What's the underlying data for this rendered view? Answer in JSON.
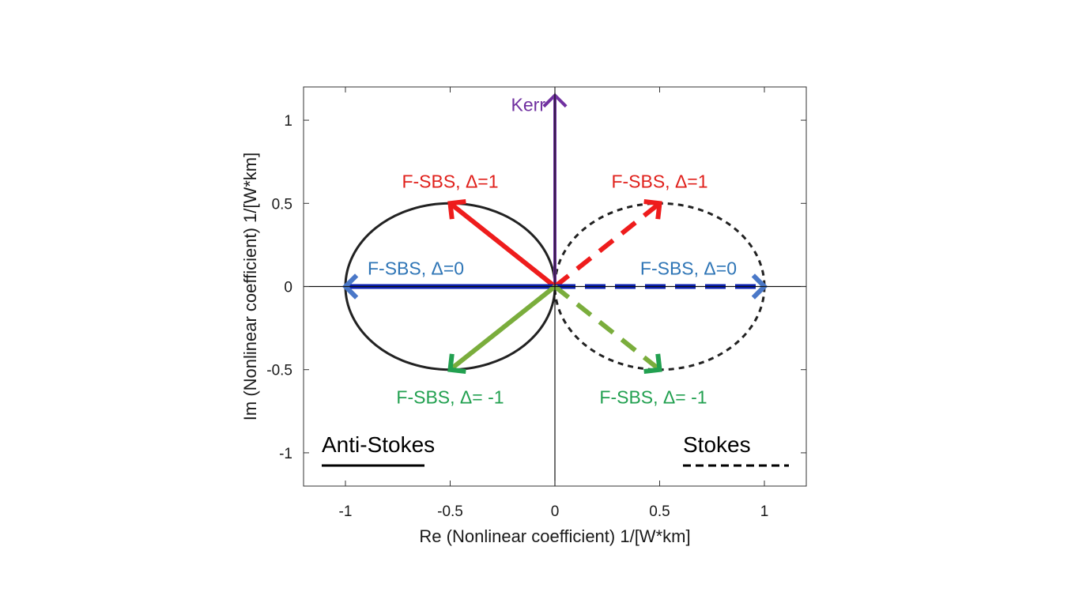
{
  "chart_data": {
    "type": "line",
    "title": "",
    "xlabel": "Re (Nonlinear coefficient) 1/[W*km]",
    "ylabel": "Im (Nonlinear coefficient) 1/[W*km]",
    "xlim": [
      -1.2,
      1.2
    ],
    "ylim": [
      -1.2,
      1.2
    ],
    "x_ticks": [
      -1,
      -0.5,
      0,
      0.5,
      1
    ],
    "x_tick_labels": [
      "-1",
      "-0.5",
      "0",
      "0.5",
      "1"
    ],
    "y_ticks": [
      -1,
      -0.5,
      0,
      0.5,
      1
    ],
    "y_tick_labels": [
      "-1",
      "-0.5",
      "0",
      "0.5",
      "1"
    ],
    "grid": false,
    "circles": [
      {
        "label": "Anti-Stokes",
        "center": [
          -0.5,
          0
        ],
        "radius_x": 0.5,
        "radius_y": 0.5,
        "style": "solid",
        "color": "#222222"
      },
      {
        "label": "Stokes",
        "center": [
          0.5,
          0
        ],
        "radius_x": 0.5,
        "radius_y": 0.5,
        "style": "dashed",
        "color": "#222222"
      }
    ],
    "vectors": [
      {
        "label": "Kerr",
        "from": [
          0,
          0
        ],
        "to": [
          0,
          1.15
        ],
        "style": "solid",
        "color": "#7030a0",
        "label_color": "#7030a0"
      },
      {
        "label": "F-SBS, Δ=1",
        "from": [
          0,
          0
        ],
        "to": [
          -0.5,
          0.5
        ],
        "style": "solid",
        "color": "#ee1c1c",
        "label_color": "#e0201b"
      },
      {
        "label": "F-SBS, Δ=0",
        "from": [
          0,
          0
        ],
        "to": [
          -1,
          0
        ],
        "style": "solid",
        "color": "#0a1fb0",
        "head_color": "#4a78c8",
        "label_color": "#2e75b6"
      },
      {
        "label": "F-SBS, Δ= -1",
        "from": [
          0,
          0
        ],
        "to": [
          -0.5,
          -0.5
        ],
        "style": "solid",
        "color": "#7aad3c",
        "head_color": "#22a050",
        "label_color": "#22a050"
      },
      {
        "label": "F-SBS, Δ=1",
        "from": [
          0,
          0
        ],
        "to": [
          0.5,
          0.5
        ],
        "style": "dashed",
        "color": "#ee1c1c",
        "label_color": "#e0201b"
      },
      {
        "label": "F-SBS, Δ=0",
        "from": [
          0,
          0
        ],
        "to": [
          1,
          0
        ],
        "style": "dashed",
        "color": "#0a1fb0",
        "head_color": "#4a78c8",
        "label_color": "#2e75b6"
      },
      {
        "label": "F-SBS, Δ= -1",
        "from": [
          0,
          0
        ],
        "to": [
          0.5,
          -0.5
        ],
        "style": "dashed",
        "color": "#7aad3c",
        "head_color": "#22a050",
        "label_color": "#22a050"
      }
    ],
    "legend": [
      {
        "label": "Anti-Stokes",
        "style": "solid",
        "placement": "bottom-left"
      },
      {
        "label": "Stokes",
        "style": "dashed",
        "placement": "bottom-right"
      }
    ]
  }
}
